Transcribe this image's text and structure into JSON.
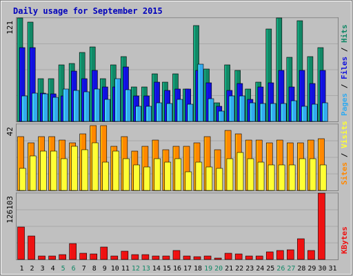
{
  "chart_data": {
    "type": "bar",
    "title": "Daily usage for September 2015",
    "days": [
      "1",
      "2",
      "3",
      "4",
      "5",
      "6",
      "7",
      "8",
      "9",
      "10",
      "11",
      "12",
      "13",
      "14",
      "15",
      "16",
      "17",
      "18",
      "19",
      "20",
      "21",
      "22",
      "23",
      "24",
      "25",
      "26",
      "27",
      "28",
      "29",
      "30",
      "31"
    ],
    "weekend_days": [
      "5",
      "6",
      "12",
      "13",
      "19",
      "20",
      "26",
      "27"
    ],
    "colors": {
      "pages": "#33aaee",
      "files": "#1111dd",
      "hits": "#118866",
      "visits": "#ffff33",
      "sites": "#ff8800",
      "kbytes": "#ee1111",
      "weekday_tick": "#000000",
      "weekend_tick": "#118866",
      "title": "#0000bb",
      "background": "#c0c0c0"
    },
    "panels": [
      {
        "axis_max_label": "121",
        "ymax": 121,
        "legend": [
          "Pages",
          "Files",
          "Hits"
        ],
        "series": [
          {
            "name": "Hits",
            "color": "#118866",
            "values": [
              121,
              116,
              50,
              50,
              66,
              68,
              81,
              87,
              50,
              66,
              76,
              40,
              40,
              56,
              46,
              56,
              38,
              112,
              61,
              22,
              66,
              60,
              38,
              46,
              108,
              121,
              75,
              118,
              76,
              86,
              0
            ]
          },
          {
            "name": "Files",
            "color": "#1111dd",
            "values": [
              86,
              86,
              33,
              32,
              30,
              59,
              50,
              60,
              40,
              40,
              64,
              30,
              30,
              46,
              36,
              38,
              38,
              60,
              45,
              18,
              36,
              44,
              26,
              40,
              45,
              60,
              40,
              60,
              44,
              60,
              0
            ]
          },
          {
            "name": "Pages",
            "color": "#33aaee",
            "values": [
              30,
              33,
              32,
              28,
              38,
              36,
              35,
              38,
              26,
              50,
              37,
              18,
              18,
              22,
              21,
              26,
              20,
              67,
              27,
              12,
              30,
              30,
              22,
              21,
              21,
              21,
              24,
              18,
              20,
              22,
              0
            ]
          }
        ]
      },
      {
        "axis_max_label": "42",
        "ymax": 42,
        "legend": [
          "Sites",
          "Visits"
        ],
        "series": [
          {
            "name": "Sites",
            "color": "#ff8800",
            "values": [
              34,
              30,
              34,
              34,
              32,
              30,
              36,
              41,
              41,
              28,
              34,
              25,
              28,
              32,
              26,
              28,
              28,
              30,
              34,
              26,
              38,
              36,
              32,
              32,
              30,
              32,
              30,
              30,
              32,
              33,
              0
            ]
          },
          {
            "name": "Visits",
            "color": "#ffff33",
            "values": [
              14,
              22,
              25,
              25,
              20,
              28,
              26,
              30,
              18,
              25,
              20,
              16,
              15,
              20,
              18,
              20,
              12,
              18,
              15,
              14,
              20,
              24,
              20,
              18,
              16,
              16,
              16,
              20,
              20,
              16,
              0
            ]
          }
        ]
      },
      {
        "axis_max_label": "126103",
        "ymax": 126103,
        "legend": [
          "KBytes"
        ],
        "series": [
          {
            "name": "KBytes",
            "color": "#ee1111",
            "values": [
              62000,
              45000,
              7000,
              7000,
              9000,
              30000,
              12000,
              11000,
              24000,
              7000,
              16000,
              9000,
              9000,
              7000,
              6000,
              17000,
              6000,
              5000,
              7000,
              2000,
              12000,
              11000,
              7000,
              6000,
              14000,
              17000,
              19000,
              40000,
              17000,
              126103,
              0
            ]
          }
        ]
      }
    ]
  }
}
